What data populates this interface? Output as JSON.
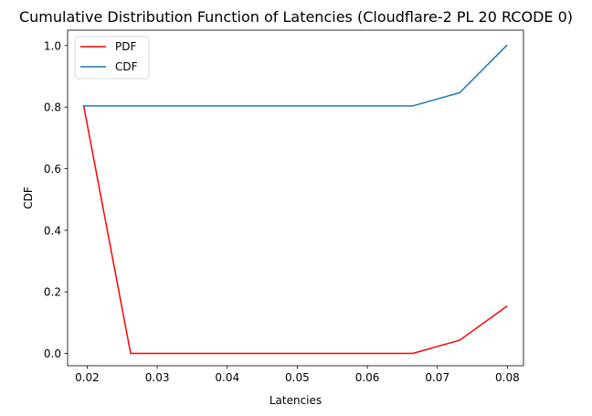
{
  "chart_data": {
    "type": "line",
    "title": "Cumulative Distribution Function of Latencies (Cloudflare-2 PL 20 RCODE 0)",
    "xlabel": "Latencies",
    "ylabel": "CDF",
    "xlim": [
      0.0172,
      0.0823
    ],
    "ylim": [
      -0.04,
      1.05
    ],
    "xticks": [
      0.02,
      0.03,
      0.04,
      0.05,
      0.06,
      0.07,
      0.08
    ],
    "xtick_labels": [
      "0.02",
      "0.03",
      "0.04",
      "0.05",
      "0.06",
      "0.07",
      "0.08"
    ],
    "yticks": [
      0.0,
      0.2,
      0.4,
      0.6,
      0.8,
      1.0
    ],
    "ytick_labels": [
      "0.0",
      "0.2",
      "0.4",
      "0.6",
      "0.8",
      "1.0"
    ],
    "grid": false,
    "legend_position": "top-left",
    "series": [
      {
        "name": "PDF",
        "color": "#ff0000",
        "x": [
          0.0195,
          0.0262,
          0.0665,
          0.0732,
          0.0799
        ],
        "y": [
          0.804,
          0.0,
          0.0,
          0.043,
          0.153
        ]
      },
      {
        "name": "CDF",
        "color": "#1f77b4",
        "x": [
          0.0195,
          0.0262,
          0.0665,
          0.0732,
          0.0799
        ],
        "y": [
          0.804,
          0.804,
          0.804,
          0.847,
          1.0
        ]
      }
    ]
  }
}
